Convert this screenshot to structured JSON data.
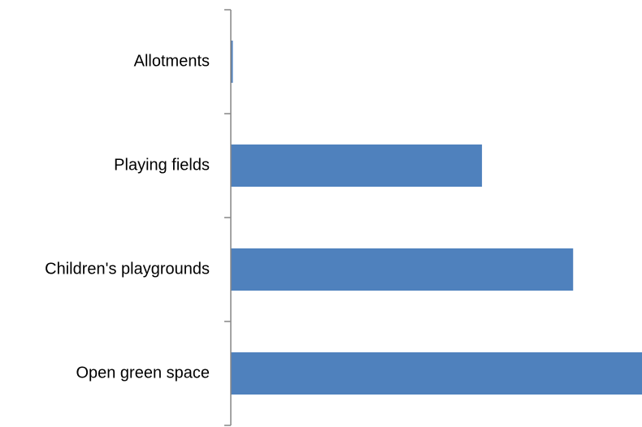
{
  "chart_data": {
    "type": "bar",
    "orientation": "horizontal",
    "categories": [
      "Allotments",
      "Playing fields",
      "Children's playgrounds",
      "Open green space"
    ],
    "values": [
      0.5,
      62,
      84.5,
      101.5
    ],
    "xlim": [
      0,
      101.5
    ],
    "title": "",
    "xlabel": "",
    "ylabel": "",
    "grid": false,
    "legend": "none",
    "bar_color": "#4F81BD",
    "axis_color": "#868686"
  }
}
